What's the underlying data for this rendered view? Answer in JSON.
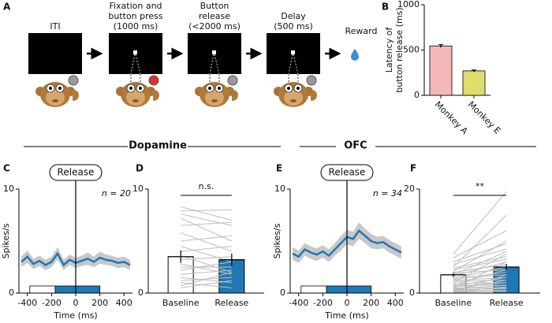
{
  "panel_labels": [
    "A",
    "B",
    "C",
    "D",
    "E",
    "F"
  ],
  "panel_a": {
    "stages": [
      {
        "label": [
          "ITI"
        ]
      },
      {
        "label": [
          "Fixation and",
          "button press",
          "(1000 ms)"
        ]
      },
      {
        "label": [
          "Button",
          "release",
          "(<2000 ms)"
        ]
      },
      {
        "label": [
          "Delay",
          "(500 ms)"
        ]
      }
    ],
    "reward": "Reward"
  },
  "section_titles": [
    "Dopamine",
    "OFC"
  ],
  "chart_data": [
    {
      "type": "bar",
      "ylabel": [
        "Latency of",
        "button release (ms)"
      ],
      "categories": [
        "Monkey A",
        "Monkey E"
      ],
      "values": [
        545,
        270
      ],
      "errors": [
        15,
        10
      ],
      "colors": [
        "#f4b8b8",
        "#dede6a"
      ],
      "ylim": [
        0,
        1000
      ],
      "yticks": [
        0,
        500,
        1000
      ]
    },
    {
      "type": "line",
      "ylabel": "Spikes/s",
      "xlabel": "Time (ms)",
      "annotation": "Release",
      "n_label": "n = 20",
      "event_time": 0,
      "x": [
        -450,
        -400,
        -350,
        -300,
        -250,
        -200,
        -150,
        -100,
        -50,
        0,
        50,
        100,
        150,
        200,
        250,
        300,
        350,
        400,
        450
      ],
      "values": [
        3.0,
        3.5,
        2.8,
        3.1,
        2.7,
        3.0,
        3.8,
        2.7,
        3.2,
        2.9,
        3.1,
        3.3,
        3.0,
        3.4,
        3.2,
        3.1,
        2.9,
        3.0,
        2.7
      ],
      "sem": [
        0.5,
        0.6,
        0.5,
        0.5,
        0.5,
        0.5,
        0.6,
        0.5,
        0.5,
        0.5,
        0.5,
        0.6,
        0.5,
        0.6,
        0.5,
        0.5,
        0.5,
        0.5,
        0.5
      ],
      "color": "#1f78b4",
      "band_color": "#c8c8c8",
      "baseline_window": [
        -380,
        -170
      ],
      "release_window": [
        -170,
        200
      ],
      "xlim": [
        -470,
        470
      ],
      "xticks": [
        -400,
        -200,
        0,
        200,
        400
      ],
      "ylim": [
        0,
        10
      ],
      "yticks": [
        0,
        10
      ]
    },
    {
      "type": "paired",
      "categories": [
        "Baseline",
        "Release"
      ],
      "values": [
        3.5,
        3.2
      ],
      "errors": [
        0.6,
        0.6
      ],
      "individual": [
        [
          8.3,
          7.9,
          7.6,
          7.2,
          6.5,
          5.8,
          5.0,
          4.5,
          4.0,
          3.6,
          3.2,
          2.8,
          2.5,
          2.2,
          1.8,
          1.5,
          1.2,
          1.0,
          0.7,
          0.5
        ],
        [
          7.0,
          8.0,
          6.5,
          5.0,
          6.8,
          4.0,
          5.5,
          3.0,
          4.5,
          2.0,
          3.5,
          1.8,
          2.5,
          3.0,
          2.2,
          1.0,
          1.5,
          0.5,
          2.0,
          1.2
        ]
      ],
      "colors": [
        "#ffffff",
        "#1f78b4"
      ],
      "significance": "n.s.",
      "ylim": [
        0,
        10
      ],
      "yticks": [
        0,
        10
      ]
    },
    {
      "type": "line",
      "ylabel": "Spikes/s",
      "xlabel": "Time (ms)",
      "annotation": "Release",
      "n_label": "n = 34",
      "event_time": 0,
      "x": [
        -450,
        -400,
        -350,
        -300,
        -250,
        -200,
        -150,
        -100,
        -50,
        0,
        50,
        100,
        150,
        200,
        250,
        300,
        350,
        400,
        450
      ],
      "values": [
        3.8,
        3.5,
        4.2,
        3.9,
        3.7,
        4.0,
        3.6,
        4.2,
        4.8,
        5.4,
        5.2,
        6.0,
        5.5,
        5.0,
        4.8,
        4.9,
        4.5,
        4.2,
        3.9
      ],
      "sem": [
        0.6,
        0.6,
        0.6,
        0.6,
        0.6,
        0.6,
        0.6,
        0.6,
        0.7,
        0.7,
        0.7,
        0.8,
        0.7,
        0.7,
        0.6,
        0.6,
        0.6,
        0.6,
        0.6
      ],
      "color": "#1f78b4",
      "band_color": "#c8c8c8",
      "baseline_window": [
        -380,
        -170
      ],
      "release_window": [
        -170,
        200
      ],
      "xlim": [
        -470,
        470
      ],
      "xticks": [
        -400,
        -200,
        0,
        200,
        400
      ],
      "ylim": [
        0,
        10
      ],
      "yticks": [
        0,
        10
      ]
    },
    {
      "type": "paired",
      "categories": [
        "Baseline",
        "Release"
      ],
      "values": [
        3.5,
        5.0
      ],
      "errors": [
        0.4,
        0.6
      ],
      "individual": [
        [
          7.5,
          6.8,
          6.0,
          5.5,
          5.0,
          4.8,
          4.5,
          4.2,
          4.0,
          3.8,
          3.5,
          3.3,
          3.0,
          2.8,
          2.6,
          2.4,
          2.2,
          2.0,
          1.8,
          1.6,
          1.5,
          1.3,
          1.2,
          1.0,
          0.9,
          0.8,
          0.7,
          0.6,
          0.5,
          0.4,
          0.3,
          0.3,
          0.2,
          0.1
        ],
        [
          19.5,
          12.0,
          9.5,
          8.5,
          15.0,
          7.0,
          6.5,
          10.0,
          5.5,
          4.5,
          8.0,
          6.0,
          3.5,
          5.0,
          4.0,
          3.0,
          2.5,
          7.5,
          2.0,
          4.5,
          1.5,
          3.0,
          2.0,
          1.0,
          6.0,
          1.5,
          0.8,
          2.5,
          1.0,
          0.5,
          3.5,
          0.3,
          1.2,
          0.5
        ]
      ],
      "colors": [
        "#ffffff",
        "#1f78b4"
      ],
      "significance": "**",
      "ylim": [
        0,
        20
      ],
      "yticks": [
        0,
        20
      ]
    }
  ]
}
